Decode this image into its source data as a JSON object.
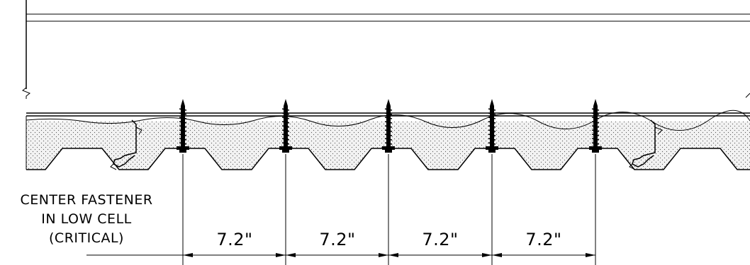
{
  "note": {
    "lines": [
      "CENTER FASTENER",
      "IN LOW CELL",
      "(CRITICAL)"
    ]
  },
  "dimensions": {
    "labels": [
      "7.2\"",
      "7.2\"",
      "7.2\"",
      "7.2\""
    ]
  },
  "colors": {
    "line": "#000000",
    "insulation_fill": "#e9e9e9",
    "background": "#ffffff"
  },
  "icons": {
    "fastener": "screw-fastener-icon",
    "seam": "standing-seam-clip-icon",
    "break": "break-line-icon"
  }
}
